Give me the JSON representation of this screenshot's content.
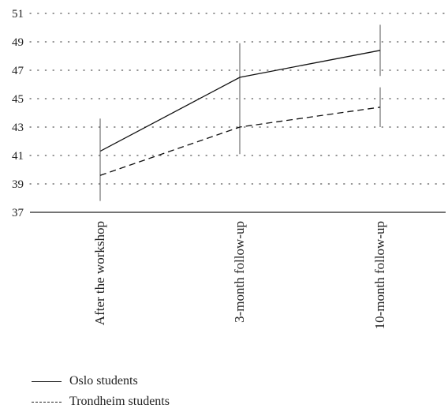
{
  "chart_data": {
    "type": "line",
    "categories": [
      "After the workshop",
      "3-month follow-up",
      "10-month follow-up"
    ],
    "series": [
      {
        "name": "Oslo students",
        "style": "solid",
        "values": [
          41.3,
          46.5,
          48.4
        ],
        "error_low": [
          39.1,
          44.1,
          46.6
        ],
        "error_high": [
          43.6,
          48.9,
          50.2
        ]
      },
      {
        "name": "Trondheim students",
        "style": "dashed",
        "values": [
          39.6,
          43.0,
          44.4
        ],
        "error_low": [
          37.8,
          41.1,
          43.0
        ],
        "error_high": [
          41.7,
          45.0,
          45.8
        ]
      }
    ],
    "ylim": [
      37,
      51
    ],
    "yticks": [
      37,
      39,
      41,
      43,
      45,
      47,
      49,
      51
    ],
    "grid": "dotted-horizontal",
    "legend_position": "bottom-left",
    "title": "",
    "xlabel": "",
    "ylabel": ""
  }
}
